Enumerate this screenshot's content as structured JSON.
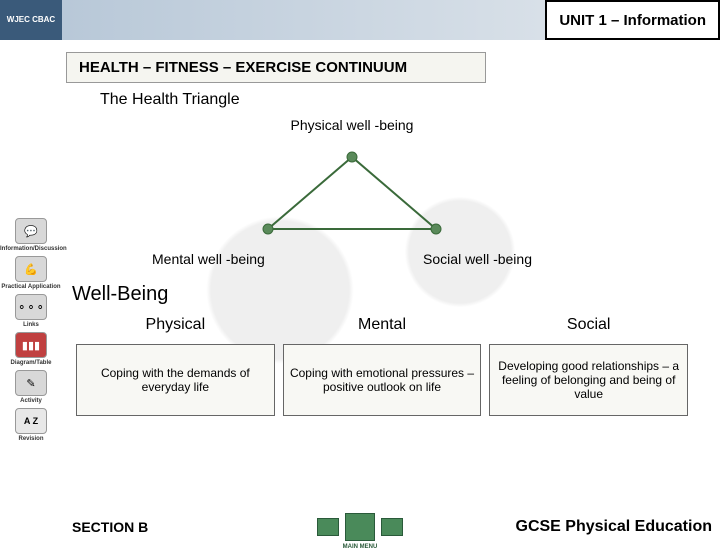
{
  "header": {
    "logo": "WJEC\nCBAC",
    "unit_title": "UNIT 1 – Information"
  },
  "main_title": "HEALTH – FITNESS – EXERCISE CONTINUUM",
  "subtitle": "The Health Triangle",
  "triangle": {
    "vertices": [
      {
        "label": "Physical well\n-being",
        "pos": "top"
      },
      {
        "label": "Mental well\n-being",
        "pos": "left"
      },
      {
        "label": "Social well\n-being",
        "pos": "right"
      }
    ],
    "line_color": "#3a6a3a",
    "line_width": 2,
    "node_radius": 5,
    "node_fill": "#5a8a5a",
    "width": 180,
    "height": 84
  },
  "wellbeing": {
    "heading": "Well-Being",
    "columns": [
      {
        "title": "Physical",
        "desc": "Coping with the demands of everyday life"
      },
      {
        "title": "Mental",
        "desc": "Coping with emotional pressures – positive outlook on life"
      },
      {
        "title": "Social",
        "desc": "Developing good relationships – a feeling of belonging and being of value"
      }
    ]
  },
  "sidebar": [
    {
      "icon": "💬",
      "label": "Information/Discussion",
      "cls": "gray"
    },
    {
      "icon": "💪",
      "label": "Practical Application",
      "cls": "gray"
    },
    {
      "icon": "⚬⚬⚬",
      "label": "Links",
      "cls": "gray"
    },
    {
      "icon": "▮▮▮",
      "label": "Diagram/Table",
      "cls": "red"
    },
    {
      "icon": "✎",
      "label": "Activity",
      "cls": "gray"
    },
    {
      "icon": "A\nZ",
      "label": "Revision",
      "cls": "az"
    }
  ],
  "footer": {
    "section": "SECTION B",
    "menu_label": "MAIN MENU",
    "course": "GCSE Physical Education"
  },
  "colors": {
    "banner_dark": "#3a5a7a",
    "box_border": "#666666",
    "box_bg": "#f8f8f4",
    "nav_green": "#4a8a5a"
  }
}
